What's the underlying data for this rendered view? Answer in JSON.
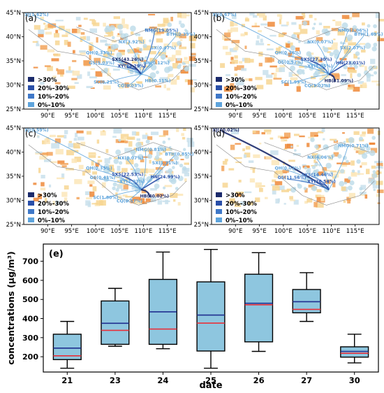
{
  "map_axes": {
    "lat_ticks": [
      "25°N",
      "30°N",
      "35°N",
      "40°N",
      "45°N"
    ],
    "lon_ticks": [
      "90°E",
      "95°E",
      "100°E",
      "105°E",
      "110°E",
      "115°E"
    ],
    "lat_range": [
      25,
      45
    ],
    "lon_range": [
      85,
      120
    ]
  },
  "legend": {
    "items": [
      {
        "label": ">30%",
        "color": "#1b2a6b"
      },
      {
        "label": "20%–30%",
        "color": "#2a4fa8"
      },
      {
        "label": "10%–20%",
        "color": "#3f78c8"
      },
      {
        "label": "0%–10%",
        "color": "#5ea4dc"
      }
    ]
  },
  "maps": [
    {
      "label": "(a)",
      "regions": [
        {
          "text": "XJ(1.62%)",
          "lon": 85.2,
          "lat": 44.3,
          "cls": 4
        },
        {
          "text": "NMG(19.05%)",
          "lon": 110.3,
          "lat": 41.0,
          "cls": 3
        },
        {
          "text": "BTH(0.39%)",
          "lon": 114.8,
          "lat": 40.2,
          "cls": 4
        },
        {
          "text": "NX(3.92%)",
          "lon": 104.8,
          "lat": 38.6,
          "cls": 4
        },
        {
          "text": "SX(0.47%)",
          "lon": 111.5,
          "lat": 37.4,
          "cls": 4
        },
        {
          "text": "QH(0.33%)",
          "lon": 98.0,
          "lat": 36.4,
          "cls": 4
        },
        {
          "text": "SXS(43.26%)",
          "lon": 103.4,
          "lat": 35.0,
          "cls": 1
        },
        {
          "text": "GS(5.03%)",
          "lon": 98.6,
          "lat": 34.3,
          "cls": 4
        },
        {
          "text": "HN(0.12%)",
          "lon": 110.0,
          "lat": 34.3,
          "cls": 4
        },
        {
          "text": "XY(24.29%)",
          "lon": 104.6,
          "lat": 33.6,
          "cls": 2
        },
        {
          "text": "SC(0.21%)",
          "lon": 99.6,
          "lat": 30.3,
          "cls": 4
        },
        {
          "text": "HB(0.11%)",
          "lon": 110.3,
          "lat": 30.6,
          "cls": 4
        },
        {
          "text": "CQ(0.03%)",
          "lon": 104.6,
          "lat": 29.6,
          "cls": 4
        }
      ]
    },
    {
      "label": "(b)",
      "regions": [
        {
          "text": "XJ(0.67%)",
          "lon": 85.2,
          "lat": 44.3,
          "cls": 4
        },
        {
          "text": "NMG(1.06%)",
          "lon": 111.4,
          "lat": 41.0,
          "cls": 4
        },
        {
          "text": "BTH(1.69%)",
          "lon": 114.8,
          "lat": 40.2,
          "cls": 4
        },
        {
          "text": "NX(0.07%)",
          "lon": 105.0,
          "lat": 38.6,
          "cls": 4
        },
        {
          "text": "SX(2.07%)",
          "lon": 111.8,
          "lat": 37.4,
          "cls": 4
        },
        {
          "text": "QH(0.36%)",
          "lon": 98.2,
          "lat": 36.4,
          "cls": 4
        },
        {
          "text": "SXS(27.30%)",
          "lon": 103.6,
          "lat": 35.0,
          "cls": 2
        },
        {
          "text": "GS(0.52%)",
          "lon": 98.8,
          "lat": 34.4,
          "cls": 4
        },
        {
          "text": "HN(23.01%)",
          "lon": 111.0,
          "lat": 34.3,
          "cls": 2
        },
        {
          "text": "XY(8.65%)",
          "lon": 105.0,
          "lat": 33.6,
          "cls": 4
        },
        {
          "text": "SC(1.99%)",
          "lon": 99.5,
          "lat": 30.3,
          "cls": 4
        },
        {
          "text": "HB(31.09%)",
          "lon": 108.6,
          "lat": 30.6,
          "cls": 1
        },
        {
          "text": "CQ(3.02%)",
          "lon": 104.4,
          "lat": 29.6,
          "cls": 4
        }
      ]
    },
    {
      "label": "(c)",
      "regions": [
        {
          "text": "XJ(0.59%)",
          "lon": 85.2,
          "lat": 44.3,
          "cls": 4
        },
        {
          "text": "NMG(0.81%)",
          "lon": 108.4,
          "lat": 40.2,
          "cls": 4
        },
        {
          "text": "BTH(0.85%)",
          "lon": 114.5,
          "lat": 39.3,
          "cls": 4
        },
        {
          "text": "NX(0.07%)",
          "lon": 104.6,
          "lat": 38.5,
          "cls": 4
        },
        {
          "text": "SX(1.71%)",
          "lon": 111.8,
          "lat": 37.5,
          "cls": 4
        },
        {
          "text": "QH(0.35%)",
          "lon": 98.0,
          "lat": 36.4,
          "cls": 4
        },
        {
          "text": "SXS(22.53%)",
          "lon": 103.4,
          "lat": 35.1,
          "cls": 2
        },
        {
          "text": "GS(0.41%)",
          "lon": 98.8,
          "lat": 34.4,
          "cls": 4
        },
        {
          "text": "HN(24.99%)",
          "lon": 111.5,
          "lat": 34.6,
          "cls": 2
        },
        {
          "text": "XY(3.03%)",
          "lon": 105.0,
          "lat": 33.6,
          "cls": 4
        },
        {
          "text": "SC(1.80%)",
          "lon": 99.5,
          "lat": 30.3,
          "cls": 4
        },
        {
          "text": "HB(40.02%)",
          "lon": 109.3,
          "lat": 30.6,
          "cls": 1
        },
        {
          "text": "CQ(0.57%)",
          "lon": 104.4,
          "lat": 29.6,
          "cls": 4
        }
      ]
    },
    {
      "label": "(d)",
      "regions": [
        {
          "text": "XJ(40.02%)",
          "lon": 85.2,
          "lat": 44.3,
          "cls": 1
        },
        {
          "text": "NMG(0.71%)",
          "lon": 111.4,
          "lat": 41.0,
          "cls": 4
        },
        {
          "text": "NX(4.06%)",
          "lon": 105.0,
          "lat": 38.6,
          "cls": 4
        },
        {
          "text": "QH(0.03%)",
          "lon": 98.2,
          "lat": 36.4,
          "cls": 4
        },
        {
          "text": "SXS(14.46%)",
          "lon": 103.8,
          "lat": 35.0,
          "cls": 3
        },
        {
          "text": "GS(11.56%)",
          "lon": 98.8,
          "lat": 34.4,
          "cls": 3
        },
        {
          "text": "XY(26.54%)",
          "lon": 105.0,
          "lat": 33.6,
          "cls": 2
        }
      ]
    }
  ],
  "chart_data": {
    "type": "box",
    "label": "(e)",
    "xlabel": "date",
    "ylabel": "concentrations (μg/m³)",
    "categories": [
      "21",
      "23",
      "24",
      "25",
      "26",
      "27",
      "30"
    ],
    "ylim": [
      120,
      790
    ],
    "yticks": [
      200,
      300,
      400,
      500,
      600,
      700
    ],
    "boxes": [
      {
        "whisker_low": 140,
        "q1": 185,
        "median": 205,
        "mean": 245,
        "q3": 318,
        "whisker_high": 385
      },
      {
        "whisker_low": 255,
        "q1": 265,
        "median": 338,
        "mean": 375,
        "q3": 492,
        "whisker_high": 558
      },
      {
        "whisker_low": 242,
        "q1": 265,
        "median": 345,
        "mean": 435,
        "q3": 605,
        "whisker_high": 748
      },
      {
        "whisker_low": 140,
        "q1": 230,
        "median": 376,
        "mean": 418,
        "q3": 592,
        "whisker_high": 762
      },
      {
        "whisker_low": 228,
        "q1": 278,
        "median": 472,
        "mean": 480,
        "q3": 632,
        "whisker_high": 745
      },
      {
        "whisker_low": 385,
        "q1": 430,
        "median": 448,
        "mean": 488,
        "q3": 552,
        "whisker_high": 640
      },
      {
        "whisker_low": 168,
        "q1": 198,
        "median": 218,
        "mean": 228,
        "q3": 252,
        "whisker_high": 318
      }
    ],
    "colors": {
      "box": "#8ec6df",
      "median": "#e8303a",
      "mean": "#1f2e8f"
    }
  }
}
